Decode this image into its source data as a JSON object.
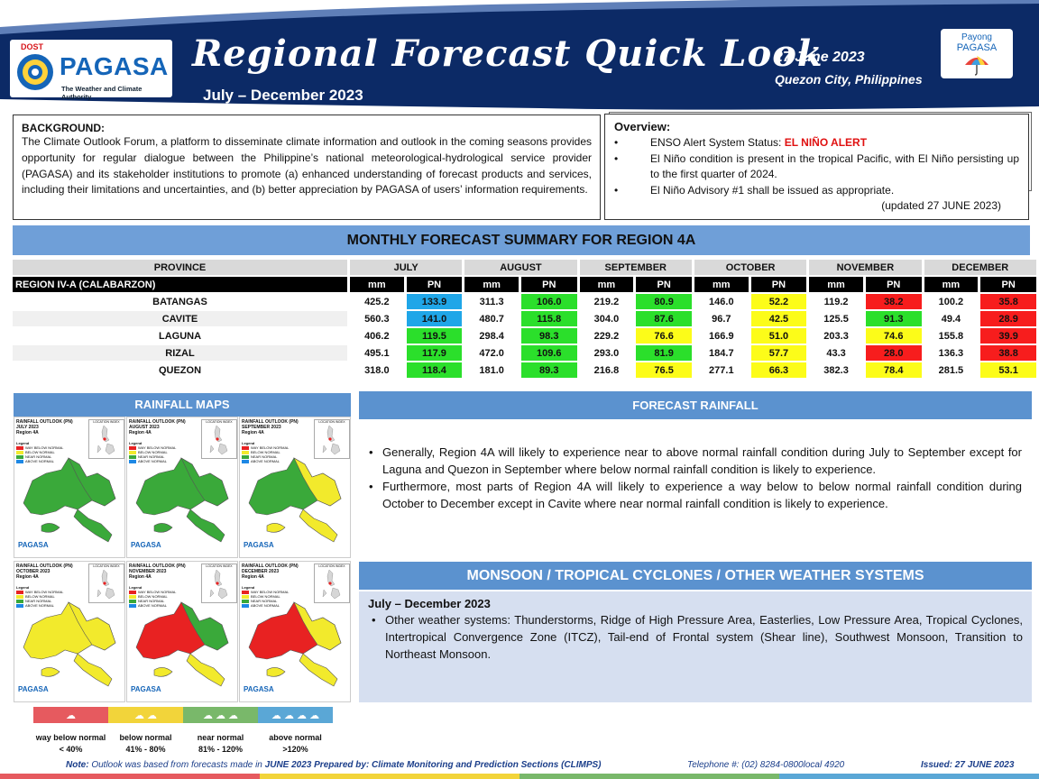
{
  "header": {
    "logo_agency": "DOST",
    "logo_name": "PAGASA",
    "logo_tagline": "The Weather and Climate Authority",
    "title": "Regional Forecast Quick Look",
    "period": "July – December 2023",
    "date": "27 June 2023",
    "location": "Quezon City, Philippines",
    "partner_logo_line1": "Payong",
    "partner_logo_line2": "PAGASA"
  },
  "background": {
    "title": "BACKGROUND:",
    "text": "The Climate Outlook Forum, a platform to disseminate climate information and outlook in the coming seasons provides opportunity for regular dialogue between the Philippine’s national meteorological-hydrological service provider (PAGASA) and its stakeholder institutions to promote (a) enhanced understanding of forecast products and services, including their limitations and uncertainties, and (b) better appreciation by PAGASA of users’ information requirements."
  },
  "overview": {
    "title": "Overview:",
    "enso_label": "ENSO Alert System Status: ",
    "enso_status": "EL NIÑO ALERT",
    "item2": "El Niño condition is present in the tropical Pacific, with El Niño persisting up to the first quarter of 2024.",
    "item3": "El Niño Advisory #1 shall be issued as appropriate.",
    "updated": "(updated 27 JUNE 2023)"
  },
  "monthly": {
    "title": "MONTHLY FORECAST SUMMARY FOR REGION 4A",
    "province_header": "PROVINCE",
    "region_label": "REGION IV-A  (CALABARZON)",
    "mm_label": "mm",
    "pn_label": "PN",
    "months": [
      "JULY",
      "AUGUST",
      "SEPTEMBER",
      "OCTOBER",
      "NOVEMBER",
      "DECEMBER"
    ],
    "rows": [
      {
        "province": "BATANGAS",
        "cells": [
          [
            "425.2",
            "133.9",
            "blue"
          ],
          [
            "311.3",
            "106.0",
            "green"
          ],
          [
            "219.2",
            "80.9",
            "green"
          ],
          [
            "146.0",
            "52.2",
            "yellow"
          ],
          [
            "119.2",
            "38.2",
            "red"
          ],
          [
            "100.2",
            "35.8",
            "red"
          ]
        ]
      },
      {
        "province": "CAVITE",
        "cells": [
          [
            "560.3",
            "141.0",
            "blue"
          ],
          [
            "480.7",
            "115.8",
            "green"
          ],
          [
            "304.0",
            "87.6",
            "green"
          ],
          [
            "96.7",
            "42.5",
            "yellow"
          ],
          [
            "125.5",
            "91.3",
            "green"
          ],
          [
            "49.4",
            "28.9",
            "red"
          ]
        ]
      },
      {
        "province": "LAGUNA",
        "cells": [
          [
            "406.2",
            "119.5",
            "green"
          ],
          [
            "298.4",
            "98.3",
            "green"
          ],
          [
            "229.2",
            "76.6",
            "yellow"
          ],
          [
            "166.9",
            "51.0",
            "yellow"
          ],
          [
            "203.3",
            "74.6",
            "yellow"
          ],
          [
            "155.8",
            "39.9",
            "red"
          ]
        ]
      },
      {
        "province": "RIZAL",
        "cells": [
          [
            "495.1",
            "117.9",
            "green"
          ],
          [
            "472.0",
            "109.6",
            "green"
          ],
          [
            "293.0",
            "81.9",
            "green"
          ],
          [
            "184.7",
            "57.7",
            "yellow"
          ],
          [
            "43.3",
            "28.0",
            "red"
          ],
          [
            "136.3",
            "38.8",
            "red"
          ]
        ]
      },
      {
        "province": "QUEZON",
        "cells": [
          [
            "318.0",
            "118.4",
            "green"
          ],
          [
            "181.0",
            "89.3",
            "green"
          ],
          [
            "216.8",
            "76.5",
            "yellow"
          ],
          [
            "277.1",
            "66.3",
            "yellow"
          ],
          [
            "382.3",
            "78.4",
            "yellow"
          ],
          [
            "281.5",
            "53.1",
            "yellow"
          ]
        ]
      }
    ]
  },
  "rainfall_maps": {
    "title": "RAINFALL MAPS",
    "panels": [
      {
        "line1": "RAINFALL OUTLOOK (PN)",
        "line2": "JULY 2023",
        "line3": "Region 4A",
        "fill": "green"
      },
      {
        "line1": "RAINFALL OUTLOOK (PN)",
        "line2": "AUGUST 2023",
        "line3": "Region 4A",
        "fill": "green"
      },
      {
        "line1": "RAINFALL OUTLOOK (PN)",
        "line2": "SEPTEMBER 2023",
        "line3": "Region 4A",
        "fill": "mixed-sep"
      },
      {
        "line1": "RAINFALL OUTLOOK (PN)",
        "line2": "OCTOBER 2023",
        "line3": "Region 4A",
        "fill": "yellow"
      },
      {
        "line1": "RAINFALL OUTLOOK (PN)",
        "line2": "NOVEMBER 2023",
        "line3": "Region 4A",
        "fill": "mixed-nov"
      },
      {
        "line1": "RAINFALL OUTLOOK (PN)",
        "line2": "DECEMBER 2023",
        "line3": "Region 4A",
        "fill": "mixed-dec"
      }
    ],
    "panel_inset_label": "LOCATION INDEX",
    "panel_legend_title": "Legend",
    "panel_legend": [
      "WAY BELOW NORMAL",
      "BELOW NORMAL",
      "NEAR NORMAL",
      "ABOVE NORMAL"
    ],
    "panel_logo": "PAGASA",
    "legend": [
      {
        "name": "way below normal",
        "range": "< 40%",
        "color": "#e65a5f"
      },
      {
        "name": "below normal",
        "range": "41%  -  80%",
        "color": "#f2d43a"
      },
      {
        "name": "near normal",
        "range": "81% - 120%",
        "color": "#79b86a"
      },
      {
        "name": "above normal",
        "range": ">120%",
        "color": "#5aa7d6"
      }
    ]
  },
  "forecast_rainfall": {
    "title": "FORECAST RAINFALL",
    "items": [
      "Generally, Region 4A will likely to experience near to above normal rainfall condition during July to September except for Laguna and Quezon in September where below normal rainfall condition is likely to experience.",
      "Furthermore, most parts of Region 4A will likely to experience a way below to below normal rainfall condition during October to December except in Cavite where near normal rainfall condition is likely to experience."
    ]
  },
  "monsoon": {
    "title": "MONSOON / TROPICAL CYCLONES / OTHER WEATHER SYSTEMS",
    "subtitle": "July – December 2023",
    "item": "Other weather systems: Thunderstorms,  Ridge of High Pressure Area,  Easterlies, Low Pressure Area, Tropical Cyclones, Intertropical Convergence Zone (ITCZ), Tail-end of Frontal system (Shear line), Southwest Monsoon, Transition to Northeast Monsoon."
  },
  "footer": {
    "note_label": "Note:",
    "note_a": " Outlook was based from forecasts made in ",
    "note_month": "JUNE 2023",
    "note_b": "  Prepared by: Climate Monitoring and Prediction Sections (CLIMPS)",
    "telephone": "Telephone #:  (02) 8284-0800local 4920",
    "issued": "Issued: 27 JUNE 2023"
  },
  "colors": {
    "navy": "#0c2a66",
    "section_blue": "#5b92cf",
    "above_normal": "#1fa6e8",
    "near_normal": "#2bdf2b",
    "below_normal": "#fcfc19",
    "way_below_normal": "#f71d1d",
    "alert_red": "#e01010"
  }
}
